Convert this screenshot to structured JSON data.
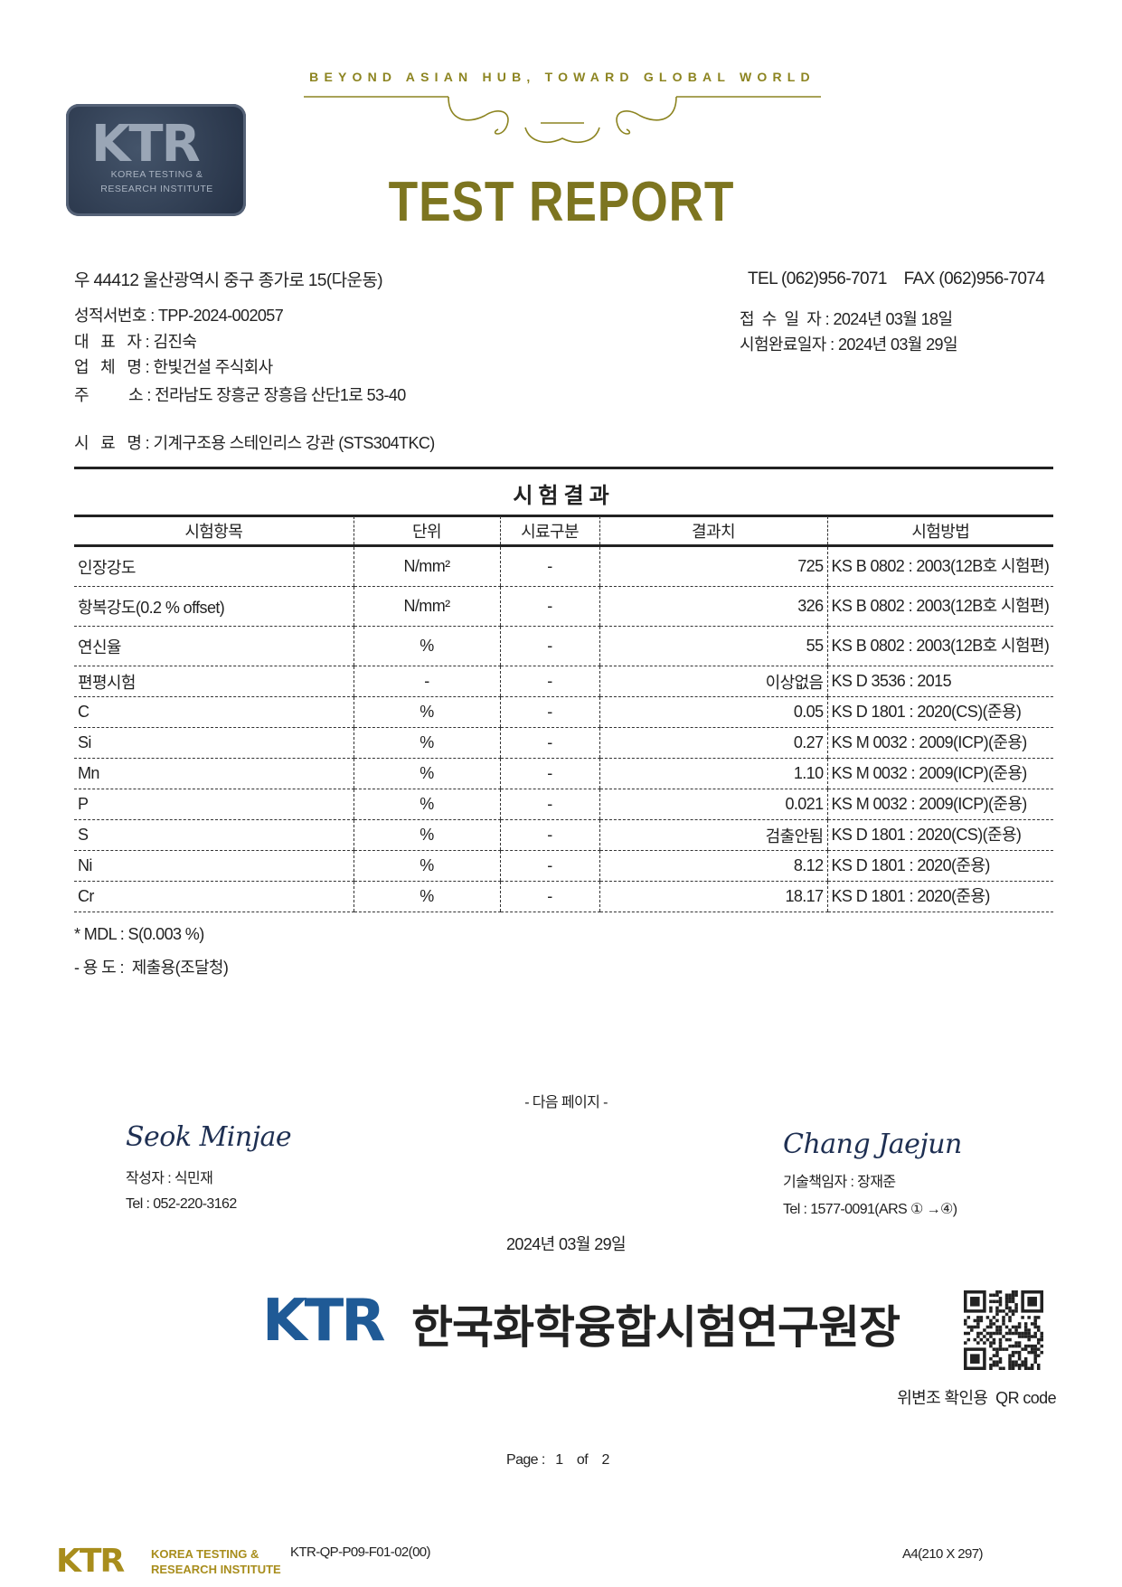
{
  "header": {
    "slogan": "BEYOND ASIAN HUB, TOWARD GLOBAL WORLD",
    "title": "TEST REPORT",
    "seal": {
      "mark": "KTR",
      "line1": "KOREA TESTING &",
      "line2": "RESEARCH INSTITUTE"
    },
    "colors": {
      "gold": "#7d7520",
      "seal": "#2c3a4e"
    }
  },
  "info": {
    "address": "우 44412 울산광역시 중구 종가로 15(다운동)",
    "tel_fax": "TEL (062)956-7071    FAX (062)956-7074",
    "report_no": "성적서번호 : TPP-2024-002057",
    "representative": "대   표   자 : 김진숙",
    "company": "업   체   명 : 한빛건설 주식회사",
    "company_address": "주          소 : 전라남도 장흥군 장흥읍 산단1로 53-40",
    "received": "접  수  일  자 : 2024년 03월 18일",
    "completed": "시험완료일자 : 2024년 03월 29일",
    "sample": "시   료   명 : 기계구조용 스테인리스 강관 (STS304TKC)"
  },
  "results": {
    "title": "시험결과",
    "columns": [
      "시험항목",
      "단위",
      "시료구분",
      "결과치",
      "시험방법"
    ],
    "rows": [
      [
        "인장강도",
        "N/mm²",
        "-",
        "725",
        "KS B 0802 : 2003(12B호 시험편)"
      ],
      [
        "항복강도(0.2 % offset)",
        "N/mm²",
        "-",
        "326",
        "KS B 0802 : 2003(12B호 시험편)"
      ],
      [
        "연신율",
        "%",
        "-",
        "55",
        "KS B 0802 : 2003(12B호 시험편)"
      ],
      [
        "편평시험",
        "-",
        "-",
        "이상없음",
        "KS D 3536 : 2015"
      ],
      [
        "C",
        "%",
        "-",
        "0.05",
        "KS D 1801 : 2020(CS)(준용)"
      ],
      [
        "Si",
        "%",
        "-",
        "0.27",
        "KS M 0032 : 2009(ICP)(준용)"
      ],
      [
        "Mn",
        "%",
        "-",
        "1.10",
        "KS M 0032 : 2009(ICP)(준용)"
      ],
      [
        "P",
        "%",
        "-",
        "0.021",
        "KS M 0032 : 2009(ICP)(준용)"
      ],
      [
        "S",
        "%",
        "-",
        "검출안됨",
        "KS D 1801 : 2020(CS)(준용)"
      ],
      [
        "Ni",
        "%",
        "-",
        "8.12",
        "KS D 1801 : 2020(준용)"
      ],
      [
        "Cr",
        "%",
        "-",
        "18.17",
        "KS D 1801 : 2020(준용)"
      ]
    ],
    "mdl_note": "* MDL : S(0.003 %)",
    "purpose": "- 용 도 :  제출용(조달청)"
  },
  "next_page": "- 다음 페이지 -",
  "signatures": {
    "author_signature": "Seok Minjae",
    "author": "작성자 : 식민재",
    "author_tel": "Tel : 052-220-3162",
    "manager_signature": "Chang Jaejun",
    "manager": "기술책임자 : 장재준",
    "manager_tel": "Tel : 1577-0091(ARS ① →④)"
  },
  "issue_date": "2024년 03월 29일",
  "issuer": {
    "logo": "KTR",
    "name": "한국화학융합시험연구원장",
    "color": "#1f5a96"
  },
  "qr": {
    "caption": "위변조 확인용  QR code"
  },
  "page": {
    "label": "Page :",
    "current": "1",
    "of": "of",
    "total": "2"
  },
  "footer": {
    "logo": "KTR",
    "logo_line1": "KOREA TESTING &",
    "logo_line2": "RESEARCH INSTITUTE",
    "form_code": "KTR-QP-P09-F01-02(00)",
    "paper": "A4(210 X 297)"
  }
}
